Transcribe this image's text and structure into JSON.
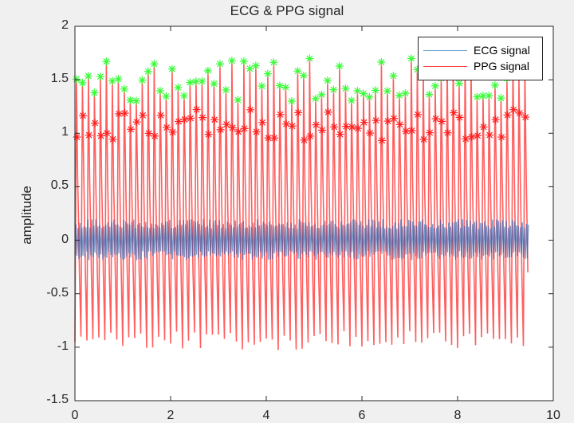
{
  "chart_data": {
    "type": "line",
    "title": "ECG & PPG signal",
    "xlabel": "",
    "ylabel": "amplitude",
    "xlim": [
      0,
      10
    ],
    "ylim": [
      -1.5,
      2
    ],
    "xticks": [
      "0",
      "2",
      "4",
      "6",
      "8",
      "10"
    ],
    "yticks": [
      "2",
      "1.5",
      "1",
      "0.5",
      "0",
      "-0.5",
      "-1",
      "-1.5"
    ],
    "grid": false,
    "legend_position": "northeast",
    "signal_duration_s": 9.5,
    "approx_beats": 76,
    "series": [
      {
        "name": "ECG signal",
        "color": "#0072BD",
        "range": [
          -0.2,
          0.22
        ],
        "description": "oscillating around 0, amplitude about ±0.2"
      },
      {
        "name": "PPG signal",
        "color": "#FF0000",
        "range": [
          -1.03,
          1.72
        ],
        "description": "periodic peaks ~1.3–1.7, troughs ~-0.85 to -1.03"
      }
    ],
    "markers": [
      {
        "name": "systolic peaks",
        "color": "#33FF33",
        "symbol": "*",
        "y_range": [
          1.25,
          1.72
        ]
      },
      {
        "name": "secondary peaks",
        "color": "#FF2020",
        "symbol": "*",
        "y_range": [
          0.93,
          1.23
        ]
      }
    ]
  },
  "legend": {
    "items": [
      {
        "label": "ECG signal",
        "color": "#0072BD"
      },
      {
        "label": "PPG signal",
        "color": "#FF0000"
      }
    ]
  }
}
